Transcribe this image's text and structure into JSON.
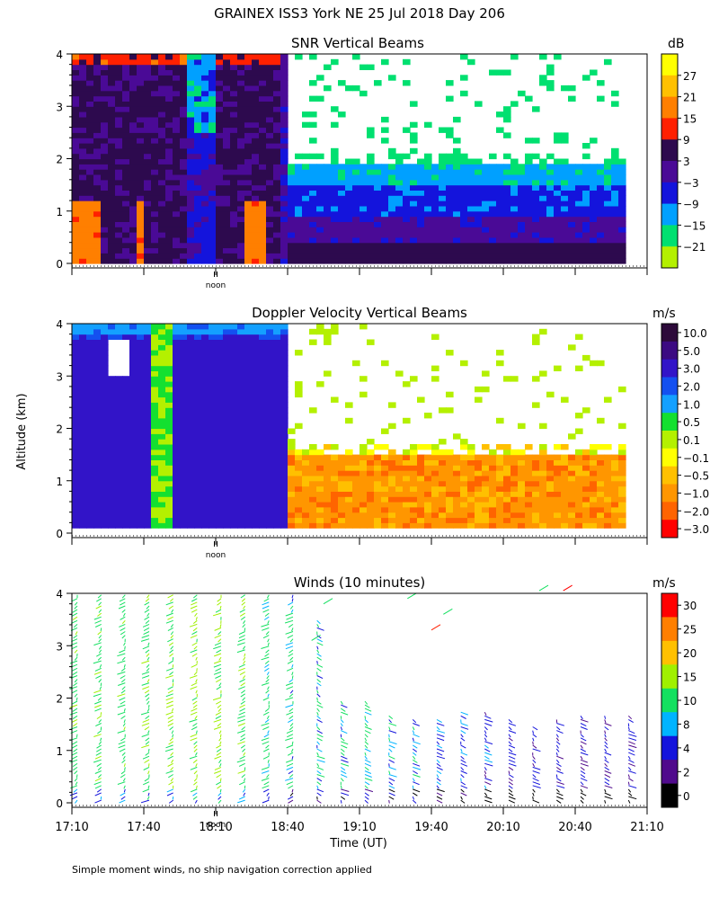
{
  "figure": {
    "title": "GRAINEX ISS3 York NE  25 Jul 2018 Day 206",
    "ylabel": "Altitude (km)",
    "xlabel": "Time (UT)",
    "footnote": "Simple moment winds, no ship navigation correction applied",
    "noon_label": "noon"
  },
  "chart_data": [
    {
      "type": "heatmap",
      "title": "SNR Vertical Beams",
      "ylim": [
        0,
        4
      ],
      "yticks": [
        "0",
        "1",
        "2",
        "3",
        "4"
      ],
      "xlim": [
        "17:10",
        "21:10"
      ],
      "colorbar": {
        "unit": "dB",
        "labels": [
          "27",
          "21",
          "15",
          "9",
          "3",
          "−3",
          "−9",
          "−15",
          "−21"
        ],
        "colors": [
          "#ffff00",
          "#ffc000",
          "#ff7f00",
          "#ff2000",
          "#2d0a4e",
          "#4a0a96",
          "#1414dc",
          "#00a0ff",
          "#00e070",
          "#b4f000"
        ]
      },
      "regions": [
        {
          "t0": "17:10",
          "t1": "18:40",
          "alt0": 0,
          "alt1": 4.0,
          "dominant_db": 5
        },
        {
          "t0": "18:40",
          "t1": "20:50",
          "alt0": 0,
          "alt1": 0.5,
          "dominant_db": 0
        },
        {
          "t0": "18:40",
          "t1": "20:50",
          "alt0": 0.5,
          "alt1": 1.5,
          "dominant_db": -9
        },
        {
          "t0": "18:40",
          "t1": "20:50",
          "alt0": 1.5,
          "alt1": 2.0,
          "dominant_db": -15
        }
      ]
    },
    {
      "type": "heatmap",
      "title": "Doppler Velocity Vertical Beams",
      "ylim": [
        0,
        4
      ],
      "yticks": [
        "0",
        "1",
        "2",
        "3",
        "4"
      ],
      "xlim": [
        "17:10",
        "21:10"
      ],
      "colorbar": {
        "unit": "m/s",
        "labels": [
          "10.0",
          "5.0",
          "3.0",
          "2.0",
          "1.0",
          "0.5",
          "0.1",
          "−0.1",
          "−0.5",
          "−1.0",
          "−2.0",
          "−3.0"
        ],
        "colors": [
          "#2d0a3a",
          "#3c0a82",
          "#3214c8",
          "#1450f0",
          "#14a0ff",
          "#14e030",
          "#b4f000",
          "#ffff00",
          "#ffc000",
          "#ff9600",
          "#ff6400",
          "#ff0000"
        ]
      },
      "regions": [
        {
          "t0": "17:10",
          "t1": "18:40",
          "alt0": 0,
          "alt1": 4.0,
          "dominant_ms": 4
        },
        {
          "t0": "17:45",
          "t1": "17:55",
          "alt0": 0,
          "alt1": 2.0,
          "dominant_ms": 0.3
        },
        {
          "t0": "18:40",
          "t1": "20:50",
          "alt0": 0,
          "alt1": 1.5,
          "dominant_ms": -0.6
        }
      ]
    },
    {
      "type": "scatter",
      "title": "Winds (10 minutes)",
      "ylim": [
        0,
        4
      ],
      "yticks": [
        "0",
        "1",
        "2",
        "3",
        "4"
      ],
      "xlim": [
        "17:10",
        "21:10"
      ],
      "x": [
        "17:10",
        "17:40",
        "18:10",
        "18:40",
        "19:10",
        "19:40",
        "20:10",
        "20:40",
        "21:10"
      ],
      "colorbar": {
        "unit": "m/s",
        "labels": [
          "30",
          "25",
          "20",
          "15",
          "10",
          "8",
          "4",
          "2",
          "0"
        ],
        "colors": [
          "#ff0000",
          "#ff7f00",
          "#ffc000",
          "#a0f000",
          "#14e060",
          "#00b4ff",
          "#1414dc",
          "#500a8c",
          "#000000"
        ]
      },
      "barb_columns_time": [
        "17:10",
        "17:20",
        "17:30",
        "17:40",
        "17:50",
        "18:00",
        "18:10",
        "18:20",
        "18:30",
        "18:40",
        "18:50",
        "19:00",
        "19:10",
        "19:20",
        "19:30",
        "19:40",
        "19:50",
        "20:00",
        "20:10",
        "20:20",
        "20:30",
        "20:40",
        "20:50",
        "21:00"
      ],
      "barb_columns_top_km": [
        4.0,
        4.0,
        4.0,
        4.0,
        4.0,
        4.0,
        4.0,
        4.0,
        4.0,
        4.0,
        3.5,
        2.0,
        2.0,
        1.7,
        1.6,
        1.6,
        1.8,
        1.8,
        1.6,
        1.5,
        1.6,
        1.7,
        1.7,
        1.7
      ],
      "barb_columns_speed_ms": [
        13,
        13,
        13,
        14,
        15,
        16,
        16,
        14,
        12,
        10,
        10,
        10,
        11,
        9,
        8,
        7,
        7,
        6,
        6,
        5,
        5,
        5,
        5,
        5
      ]
    }
  ]
}
